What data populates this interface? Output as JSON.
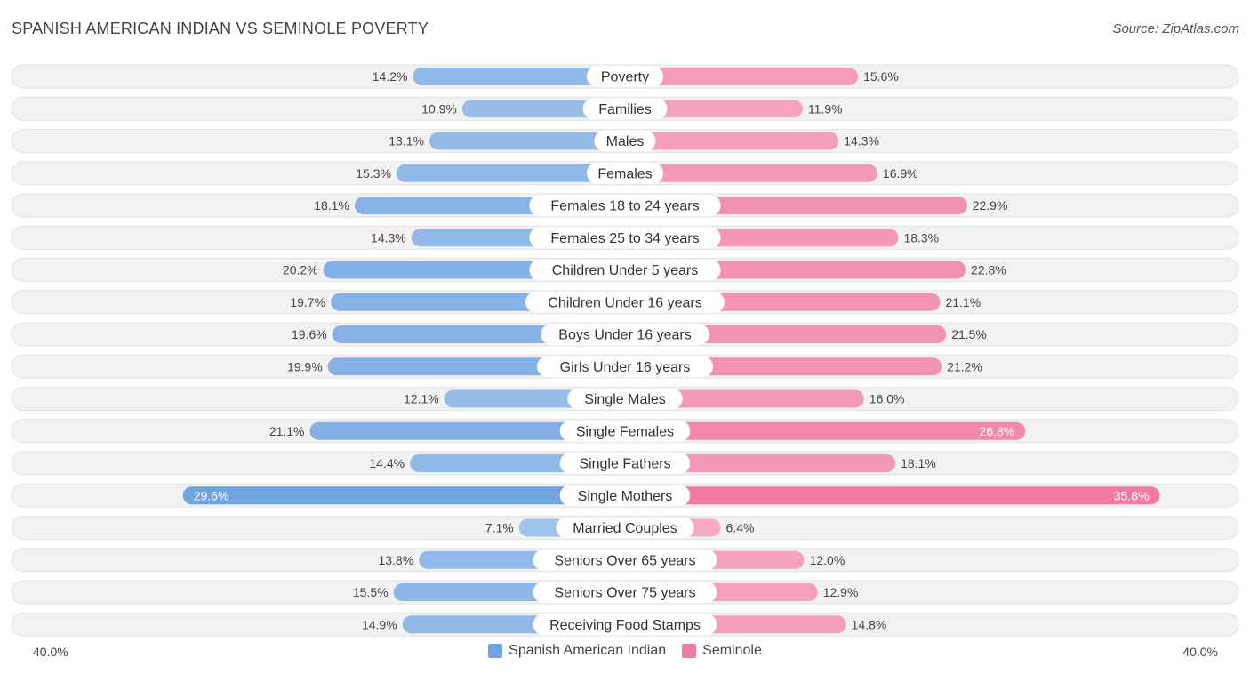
{
  "title": "SPANISH AMERICAN INDIAN VS SEMINOLE POVERTY",
  "source": "Source: ZipAtlas.com",
  "axis": {
    "left_label": "40.0%",
    "right_label": "40.0%"
  },
  "legend": [
    {
      "label": "Spanish American Indian",
      "color": "#6fa3e0"
    },
    {
      "label": "Seminole",
      "color": "#f07aa0"
    }
  ],
  "chart_data": {
    "type": "bar",
    "orientation": "horizontal-diverging",
    "xlim": [
      0,
      40
    ],
    "unit": "%",
    "categories": [
      "Poverty",
      "Families",
      "Males",
      "Females",
      "Females 18 to 24 years",
      "Females 25 to 34 years",
      "Children Under 5 years",
      "Children Under 16 years",
      "Boys Under 16 years",
      "Girls Under 16 years",
      "Single Males",
      "Single Females",
      "Single Fathers",
      "Single Mothers",
      "Married Couples",
      "Seniors Over 65 years",
      "Seniors Over 75 years",
      "Receiving Food Stamps"
    ],
    "series": [
      {
        "name": "Spanish American Indian",
        "color": "#6fa3e0",
        "values": [
          14.2,
          10.9,
          13.1,
          15.3,
          18.1,
          14.3,
          20.2,
          19.7,
          19.6,
          19.9,
          12.1,
          21.1,
          14.4,
          29.6,
          7.1,
          13.8,
          15.5,
          14.9
        ],
        "labels": [
          "14.2%",
          "10.9%",
          "13.1%",
          "15.3%",
          "18.1%",
          "14.3%",
          "20.2%",
          "19.7%",
          "19.6%",
          "19.9%",
          "12.1%",
          "21.1%",
          "14.4%",
          "29.6%",
          "7.1%",
          "13.8%",
          "15.5%",
          "14.9%"
        ]
      },
      {
        "name": "Seminole",
        "color": "#f07aa0",
        "values": [
          15.6,
          11.9,
          14.3,
          16.9,
          22.9,
          18.3,
          22.8,
          21.1,
          21.5,
          21.2,
          16.0,
          26.8,
          18.1,
          35.8,
          6.4,
          12.0,
          12.9,
          14.8
        ],
        "labels": [
          "15.6%",
          "11.9%",
          "14.3%",
          "16.9%",
          "22.9%",
          "18.3%",
          "22.8%",
          "21.1%",
          "21.5%",
          "21.2%",
          "16.0%",
          "26.8%",
          "18.1%",
          "35.8%",
          "6.4%",
          "12.0%",
          "12.9%",
          "14.8%"
        ]
      }
    ]
  }
}
